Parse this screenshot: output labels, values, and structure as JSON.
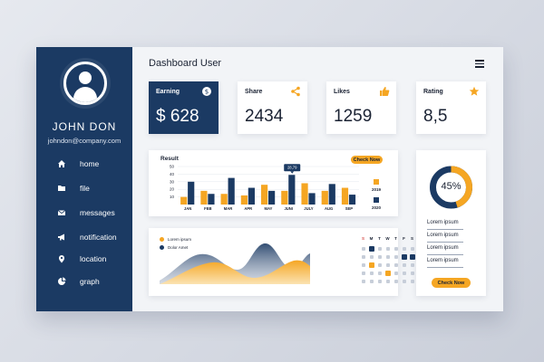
{
  "user": {
    "name": "JOHN DON",
    "email": "johndon@company.com"
  },
  "nav": [
    {
      "label": "home",
      "icon": "home-icon"
    },
    {
      "label": "file",
      "icon": "folder-icon"
    },
    {
      "label": "messages",
      "icon": "mail-icon"
    },
    {
      "label": "notification",
      "icon": "megaphone-icon"
    },
    {
      "label": "location",
      "icon": "location-pin-icon"
    },
    {
      "label": "graph",
      "icon": "pie-chart-icon"
    }
  ],
  "header": {
    "title": "Dashboard User"
  },
  "stats": [
    {
      "label": "Earning",
      "value": "$ 628",
      "icon": "dollar-icon"
    },
    {
      "label": "Share",
      "value": "2434",
      "icon": "share-icon"
    },
    {
      "label": "Likes",
      "value": "1259",
      "icon": "thumbs-up-icon"
    },
    {
      "label": "Rating",
      "value": "8,5",
      "icon": "star-icon"
    }
  ],
  "result": {
    "title": "Result",
    "button": "Check Now",
    "tooltip": "28,79",
    "legend": [
      "2019",
      "2020"
    ]
  },
  "donut": {
    "label": "45%",
    "percent": 45,
    "items": [
      "Lorem ipsum",
      "Lorem ipsum",
      "Lorem ipsum",
      "Lorem ipsum"
    ],
    "button": "Check Now"
  },
  "area": {
    "legend": [
      "Lorem ipsum",
      "Dolor Amet"
    ]
  },
  "calendar": {
    "headers": [
      "S",
      "M",
      "T",
      "W",
      "T",
      "F",
      "S"
    ],
    "highlight_blue": [
      [
        1,
        1
      ],
      [
        2,
        5
      ],
      [
        2,
        6
      ]
    ],
    "highlight_orange": [
      [
        3,
        1
      ],
      [
        4,
        3
      ]
    ]
  },
  "colors": {
    "navy": "#1b3a63",
    "orange": "#f5a623",
    "gray": "#b8c0cc"
  },
  "chart_data": {
    "type": "bar",
    "title": "Result",
    "categories": [
      "JAN",
      "FEB",
      "MAR",
      "APR",
      "MAY",
      "JUNI",
      "JULY",
      "AUG",
      "SEP"
    ],
    "series": [
      {
        "name": "2019",
        "values": [
          10,
          18,
          14,
          12,
          26,
          18,
          28,
          18,
          22
        ]
      },
      {
        "name": "2020",
        "values": [
          30,
          14,
          35,
          22,
          18,
          39,
          15,
          27,
          13
        ]
      }
    ],
    "yticks": [
      10,
      20,
      30,
      40,
      50
    ],
    "ylim": [
      0,
      50
    ],
    "xlabel": "",
    "ylabel": ""
  }
}
